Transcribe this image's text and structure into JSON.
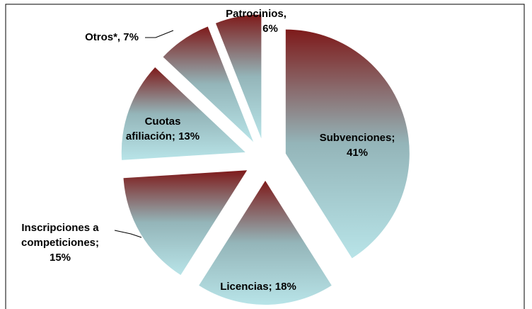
{
  "chart_data": {
    "type": "pie",
    "values": [
      41,
      18,
      15,
      13,
      7,
      6
    ],
    "value_labels": [
      [
        "Subvenciones;",
        "41%"
      ],
      [
        "Licencias; 18%"
      ],
      [
        "Inscripciones a",
        "competiciones;",
        "15%"
      ],
      [
        "Cuotas",
        "afiliación; 13%"
      ],
      [
        "Otros*, 7%"
      ],
      [
        "Patrocinios,",
        "6%"
      ]
    ],
    "start_angle": 0,
    "direction": "clockwise",
    "exploded": true
  }
}
